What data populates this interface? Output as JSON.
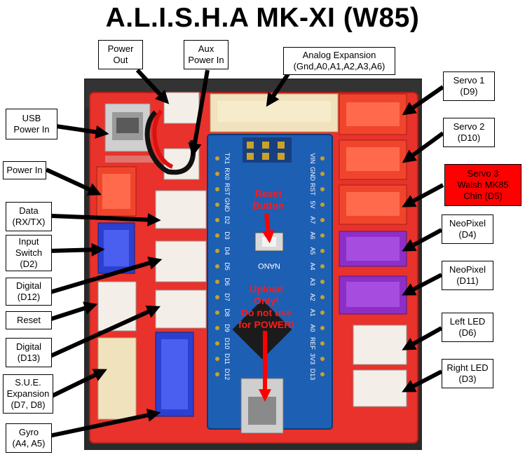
{
  "title": "A.L.I.S.H.A MK-XI (W85)",
  "labels": {
    "power_out": "Power\nOut",
    "aux_power_in": "Aux\nPower In",
    "analog_expansion": "Analog Expansion\n(Gnd,A0,A1,A2,A3,A6)",
    "usb_power_in": "USB\nPower In",
    "power_in": "Power In",
    "data": "Data\n(RX/TX)",
    "input_switch": "Input\nSwitch\n(D2)",
    "digital_d12": "Digital\n(D12)",
    "reset": "Reset",
    "digital_d13": "Digital\n(D13)",
    "sue_expansion": "S.U.E.\nExpansion\n(D7, D8)",
    "gyro": "Gyro\n(A4, A5)",
    "servo1": "Servo 1\n(D9)",
    "servo2": "Servo 2\n(D10)",
    "servo3": "Servo 3\nWalsh MK85\nChin (D5)",
    "neopixel_d4": "NeoPixel\n(D4)",
    "neopixel_d11": "NeoPixel\n(D11)",
    "left_led": "Left LED\n(D6)",
    "right_led": "Right LED\n(D3)"
  },
  "annotations": {
    "reset_button": "Reset\nButton",
    "upload_only": "Upload\nOnly!\nDo not use\nfor POWER!"
  },
  "board_text": {
    "nano": "NANO",
    "pins_left": [
      "TX1",
      "RX0",
      "RST",
      "GND",
      "D2",
      "D3",
      "D4",
      "D5",
      "D6",
      "D7",
      "D8",
      "D9",
      "D10",
      "D11",
      "D12"
    ],
    "pins_right": [
      "VIN",
      "GND",
      "RST",
      "5V",
      "A7",
      "A6",
      "A5",
      "A4",
      "A3",
      "A2",
      "A1",
      "A0",
      "REF",
      "3V3",
      "D13"
    ]
  },
  "colors": {
    "board_red": "#e8322b",
    "nano_blue": "#1d5fb3",
    "servo_red": "#f0452c",
    "neopixel_purple": "#8d2fc7",
    "white_connector": "#f3efe8",
    "blue_connector": "#2b3fd0",
    "cream_connector": "#efe2bc",
    "highlight_label": "#ff0000",
    "arrow_black": "#000000",
    "arrow_red": "#ff0000"
  }
}
